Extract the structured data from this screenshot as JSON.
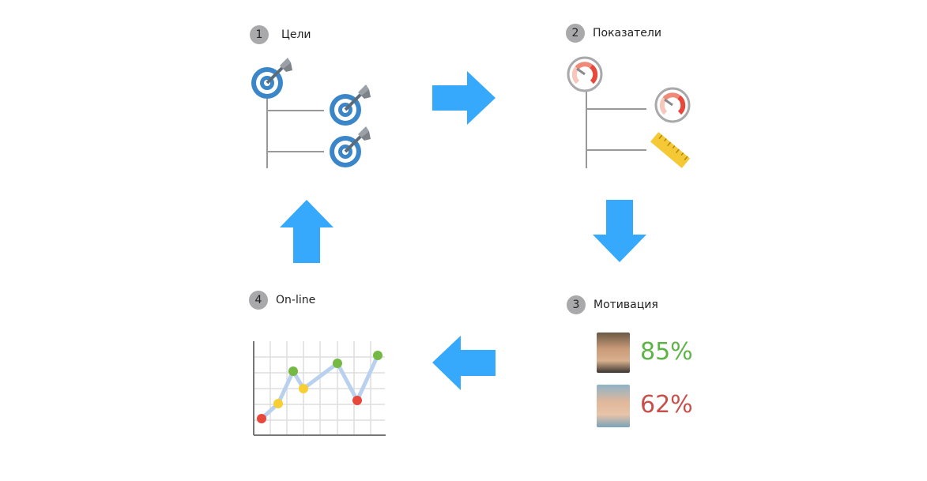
{
  "steps": [
    {
      "number": "1",
      "label": "Цели"
    },
    {
      "number": "2",
      "label": "Показатели"
    },
    {
      "number": "3",
      "label": "Мотивация"
    },
    {
      "number": "4",
      "label": "On-line"
    }
  ],
  "motivation": [
    {
      "percent": "85%",
      "color": "#5cb346"
    },
    {
      "percent": "62%",
      "color": "#c9504a"
    }
  ],
  "colors": {
    "arrow": "#36a9fc",
    "target": "#3a86c8",
    "badge": "#a9a9ab",
    "ruler": "#f5c836",
    "gauge": "#e8473b"
  }
}
